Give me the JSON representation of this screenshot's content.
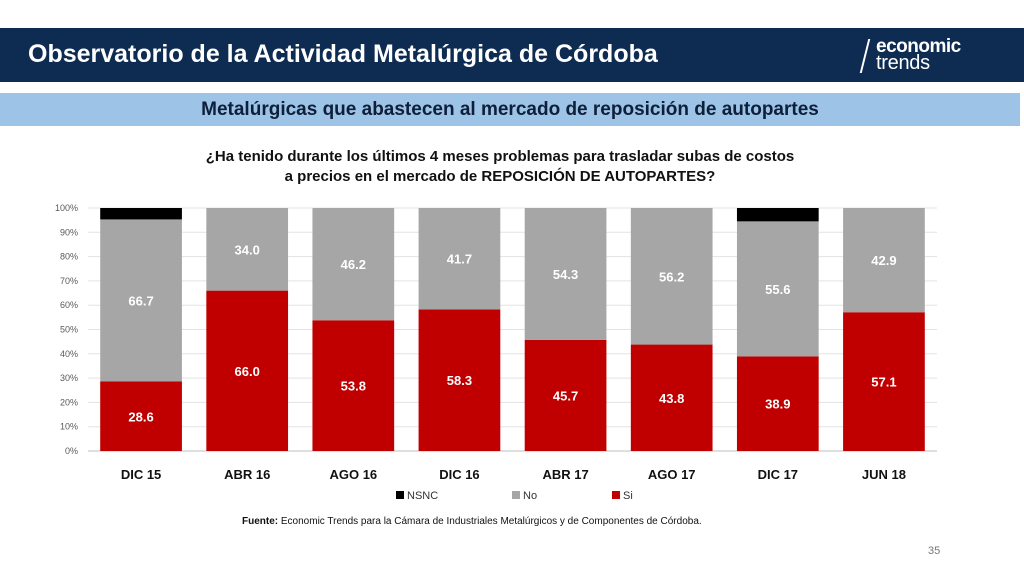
{
  "header": {
    "title": "Observatorio de la Actividad Metalúrgica de Córdoba",
    "logo_line1": "economic",
    "logo_line2": "trends",
    "background": "#0e2c52"
  },
  "subtitle": {
    "text": "Metalúrgicas que abastecen al mercado de reposición de autopartes",
    "background": "#9dc3e6"
  },
  "question": {
    "line1": "¿Ha tenido durante los últimos 4 meses problemas para trasladar subas de costos",
    "line2": "a precios en el mercado de REPOSICIÓN DE AUTOPARTES?"
  },
  "chart_data": {
    "type": "bar",
    "stacked": true,
    "categories": [
      "DIC 15",
      "ABR 16",
      "AGO 16",
      "DIC 16",
      "ABR 17",
      "AGO 17",
      "DIC 17",
      "JUN 18"
    ],
    "series": [
      {
        "name": "Si",
        "color": "#c00000",
        "values": [
          28.6,
          66.0,
          53.8,
          58.3,
          45.7,
          43.8,
          38.9,
          57.1
        ],
        "labels": [
          "28.6",
          "66.0",
          "53.8",
          "58.3",
          "45.7",
          "43.8",
          "38.9",
          "57.1"
        ]
      },
      {
        "name": "No",
        "color": "#a6a6a6",
        "values": [
          66.7,
          34.0,
          46.2,
          41.7,
          54.3,
          56.2,
          55.6,
          42.9
        ],
        "labels": [
          "66.7",
          "34.0",
          "46.2",
          "41.7",
          "54.3",
          "56.2",
          "55.6",
          "42.9"
        ]
      },
      {
        "name": "NSNC",
        "color": "#000000",
        "values": [
          4.7,
          0,
          0,
          0,
          0,
          0,
          5.5,
          0
        ]
      }
    ],
    "y_ticks": [
      "0%",
      "10%",
      "20%",
      "30%",
      "40%",
      "50%",
      "60%",
      "70%",
      "80%",
      "90%",
      "100%"
    ],
    "ylim": [
      0,
      100
    ],
    "grid": true,
    "legend_order": [
      "NSNC",
      "No",
      "Si"
    ],
    "legend_position": "bottom"
  },
  "footer": {
    "source_label": "Fuente:",
    "source_text": " Economic Trends para la Cámara de Industriales Metalúrgicos y de Componentes de Córdoba.",
    "page_number": "35"
  }
}
